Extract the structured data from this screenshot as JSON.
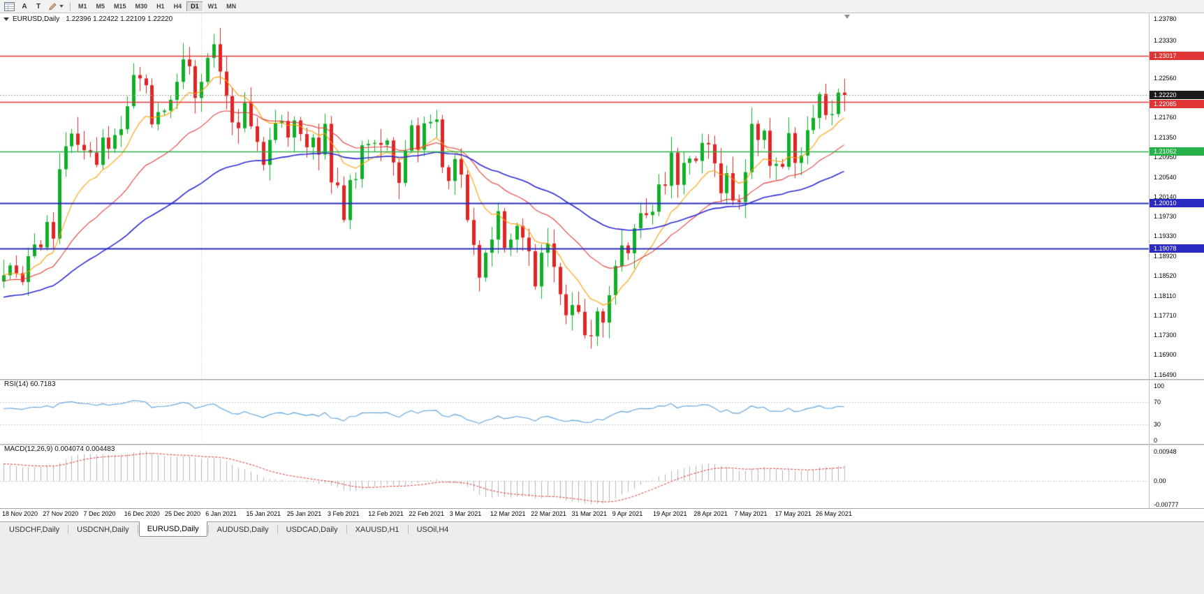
{
  "toolbar": {
    "a_tool": "A",
    "t_tool": "T",
    "timeframes": [
      "M1",
      "M5",
      "M15",
      "M30",
      "H1",
      "H4",
      "D1",
      "W1",
      "MN"
    ],
    "active_timeframe": "D1"
  },
  "main_chart": {
    "title_symbol": "EURUSD,Daily",
    "title_ohlc": "1.22396 1.22422 1.22109 1.22220",
    "price_axis_labels": [
      "1.23780",
      "1.23330",
      "1.22560",
      "1.21760",
      "1.21350",
      "1.20950",
      "1.20540",
      "1.20140",
      "1.19730",
      "1.19330",
      "1.18920",
      "1.18520",
      "1.18110",
      "1.17710",
      "1.17300",
      "1.16900",
      "1.16490"
    ],
    "price_badges": [
      {
        "text": "1.23017",
        "value": 1.23017,
        "color": "#e03535",
        "name": "resistance-upper"
      },
      {
        "text": "1.22220",
        "value": 1.2222,
        "color": "#1a1a1a",
        "name": "current-price"
      },
      {
        "text": "1.22085",
        "value": 1.22085,
        "color": "#e03535",
        "name": "resistance-lower"
      },
      {
        "text": "1.21062",
        "value": 1.21062,
        "color": "#28b24a",
        "name": "support-green"
      },
      {
        "text": "1.20010",
        "value": 1.2001,
        "color": "#2a2ac0",
        "name": "support-blue-upper"
      },
      {
        "text": "1.19078",
        "value": 1.19078,
        "color": "#2a2ac0",
        "name": "support-blue-lower"
      }
    ]
  },
  "rsi_panel": {
    "label": "RSI(14) 60.7183",
    "axis": [
      {
        "text": "100",
        "value": 100
      },
      {
        "text": "70",
        "value": 70
      },
      {
        "text": "30",
        "value": 30
      },
      {
        "text": "0",
        "value": 0
      }
    ],
    "levels": [
      70,
      30
    ],
    "line_color": "#5aa0dc"
  },
  "macd_panel": {
    "label": "MACD(12,26,9) 0.004074 0.004483",
    "axis": [
      {
        "text": "0.00948",
        "value": 0.00948
      },
      {
        "text": "0.00",
        "value": 0
      },
      {
        "text": "-0.00777",
        "value": -0.00777
      }
    ],
    "histogram_color": "#b5b5b5",
    "signal_color": "#e23333"
  },
  "tabs": {
    "active": "EURUSD,Daily",
    "items": [
      "USDCHF,Daily",
      "USDCNH,Daily",
      "EURUSD,Daily",
      "AUDUSD,Daily",
      "USDCAD,Daily",
      "XAUUSD,H1",
      "USOil,H4"
    ]
  },
  "chart_data": {
    "type": "candlestick",
    "symbol": "EURUSD",
    "timeframe": "Daily",
    "current_bar": {
      "open": 1.22396,
      "high": 1.22422,
      "low": 1.22109,
      "close": 1.2222
    },
    "ylim": [
      1.1649,
      1.2378
    ],
    "first_open": 1.184,
    "closes": [
      1.1853,
      1.1873,
      1.1857,
      1.1839,
      1.1892,
      1.1916,
      1.191,
      1.1962,
      1.1928,
      1.207,
      1.2117,
      1.2143,
      1.212,
      1.2109,
      1.2104,
      1.2079,
      1.2135,
      1.2112,
      1.214,
      1.2152,
      1.2199,
      1.2263,
      1.2256,
      1.2242,
      1.2162,
      1.2187,
      1.219,
      1.2212,
      1.2249,
      1.2295,
      1.2281,
      1.2216,
      1.2249,
      1.2298,
      1.2326,
      1.227,
      1.222,
      1.2166,
      1.2154,
      1.2206,
      1.2158,
      1.2126,
      1.2079,
      1.213,
      1.2164,
      1.2169,
      1.2135,
      1.217,
      1.2142,
      1.2115,
      1.2135,
      1.21,
      1.2163,
      1.2043,
      1.2037,
      1.1966,
      1.2048,
      1.205,
      1.2119,
      1.2122,
      1.2124,
      1.212,
      1.2129,
      1.2084,
      1.2042,
      1.2108,
      1.216,
      1.211,
      1.2164,
      1.2167,
      1.2172,
      1.2074,
      1.2046,
      1.2091,
      1.2059,
      1.1966,
      1.1915,
      1.1848,
      1.1899,
      1.1926,
      1.1984,
      1.1909,
      1.1926,
      1.1954,
      1.193,
      1.1902,
      1.183,
      1.1899,
      1.1918,
      1.187,
      1.1814,
      1.1771,
      1.1792,
      1.1778,
      1.173,
      1.1728,
      1.1779,
      1.1756,
      1.1812,
      1.1872,
      1.1914,
      1.1898,
      1.1949,
      1.198,
      1.1976,
      1.1983,
      1.2039,
      1.2036,
      1.2104,
      1.2038,
      1.2083,
      1.2092,
      1.2087,
      1.2124,
      1.2121,
      1.2082,
      1.2021,
      1.2062,
      1.2006,
      1.2003,
      1.2064,
      1.2163,
      1.213,
      1.2149,
      1.2077,
      1.2081,
      1.2075,
      1.2144,
      1.2083,
      1.2098,
      1.215,
      1.2175,
      1.2224,
      1.2181,
      1.2183,
      1.2227,
      1.2222
    ],
    "x_labels": [
      "18 Nov 2020",
      "27 Nov 2020",
      "7 Dec 2020",
      "16 Dec 2020",
      "25 Dec 2020",
      "6 Jan 2021",
      "15 Jan 2021",
      "25 Jan 2021",
      "3 Feb 2021",
      "12 Feb 2021",
      "22 Feb 2021",
      "3 Mar 2021",
      "12 Mar 2021",
      "22 Mar 2021",
      "31 Mar 2021",
      "9 Apr 2021",
      "19 Apr 2021",
      "28 Apr 2021",
      "7 May 2021",
      "17 May 2021",
      "26 May 2021"
    ],
    "year_separator_index": 32,
    "up_color": "#0faf27",
    "down_color": "#e02525",
    "moving_averages": [
      {
        "kind": "fast",
        "period": 10,
        "color": "#ff9d00"
      },
      {
        "kind": "medium",
        "period": 25,
        "color": "#e53935"
      },
      {
        "kind": "slow",
        "period": 55,
        "color": "#2b2bd5"
      }
    ],
    "horizontal_lines": [
      {
        "value": 1.23017,
        "color": "#e03535",
        "width": 1.4
      },
      {
        "value": 1.22085,
        "color": "#e03535",
        "width": 1.4
      },
      {
        "value": 1.21062,
        "color": "#28b24a",
        "width": 1.6
      },
      {
        "value": 1.2001,
        "color": "#2a2ac0",
        "width": 2
      },
      {
        "value": 1.19078,
        "color": "#2a2ac0",
        "width": 2
      }
    ],
    "indicators": {
      "rsi": {
        "period": 14,
        "current": 60.7183
      },
      "macd": {
        "fast": 12,
        "slow": 26,
        "signal": 9,
        "current_macd": 0.004074,
        "current_signal": 0.004483
      }
    }
  }
}
